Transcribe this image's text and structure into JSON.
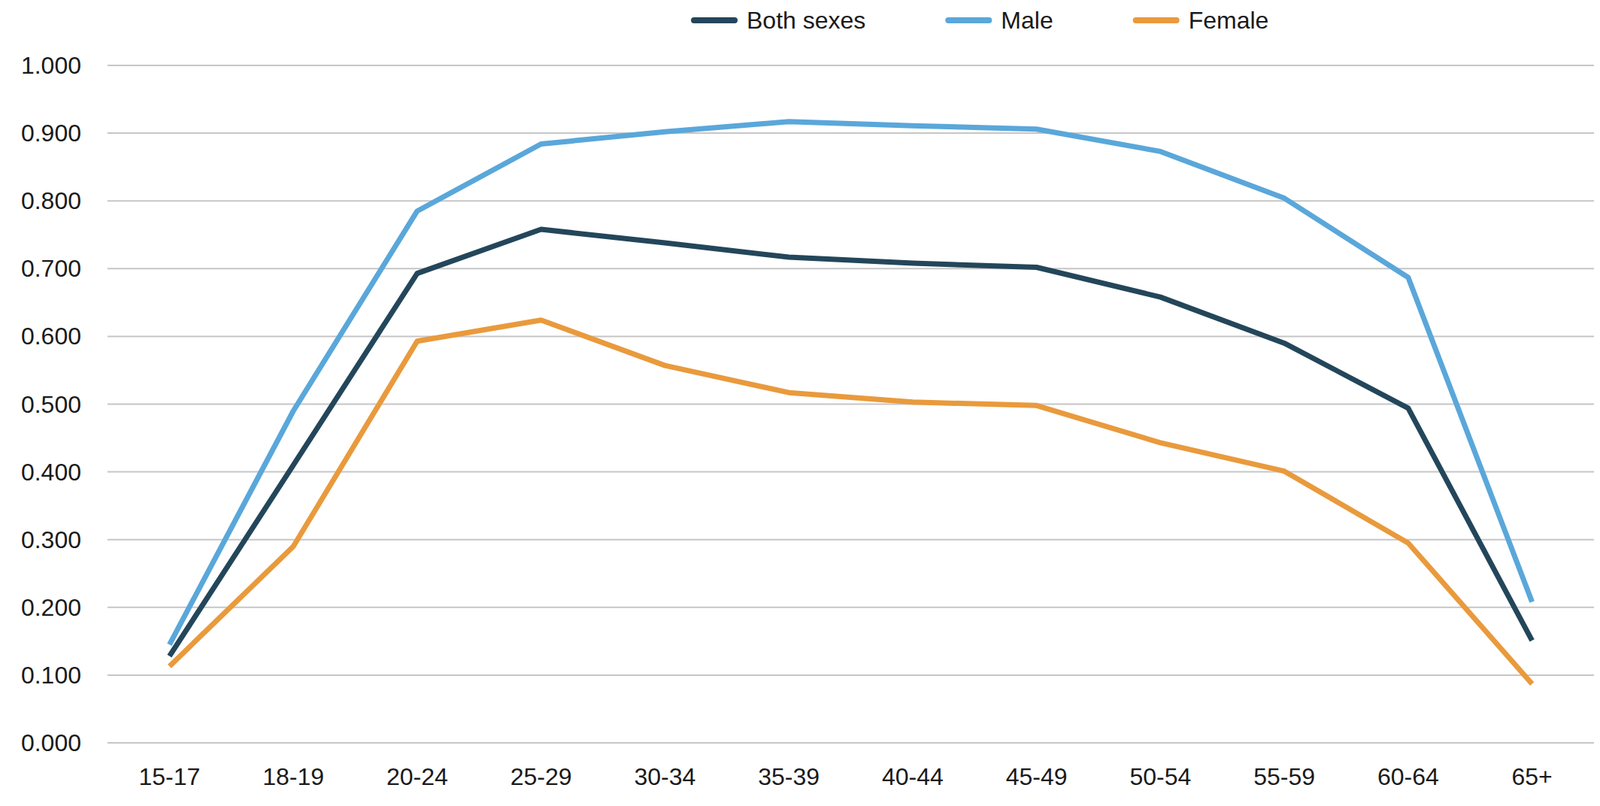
{
  "chart_data": {
    "type": "line",
    "categories": [
      "15-17",
      "18-19",
      "20-24",
      "25-29",
      "30-34",
      "35-39",
      "40-44",
      "45-49",
      "50-54",
      "55-59",
      "60-64",
      "65+"
    ],
    "series": [
      {
        "name": "Both sexes",
        "color": "#23465a",
        "values": [
          0.128,
          0.41,
          0.693,
          0.758,
          0.738,
          0.717,
          0.708,
          0.702,
          0.658,
          0.59,
          0.494,
          0.151
        ]
      },
      {
        "name": "Male",
        "color": "#5aa7da",
        "values": [
          0.145,
          0.49,
          0.785,
          0.884,
          0.902,
          0.917,
          0.911,
          0.906,
          0.873,
          0.804,
          0.687,
          0.208
        ]
      },
      {
        "name": "Female",
        "color": "#e99a3c",
        "values": [
          0.113,
          0.29,
          0.593,
          0.624,
          0.557,
          0.517,
          0.503,
          0.498,
          0.443,
          0.401,
          0.295,
          0.087
        ]
      }
    ],
    "ylim": [
      0,
      1
    ],
    "yticks": [
      {
        "value": 0,
        "label": "0.000"
      },
      {
        "value": 0.1,
        "label": "0.100"
      },
      {
        "value": 0.2,
        "label": "0.200"
      },
      {
        "value": 0.3,
        "label": "0.300"
      },
      {
        "value": 0.4,
        "label": "0.400"
      },
      {
        "value": 0.5,
        "label": "0.500"
      },
      {
        "value": 0.6,
        "label": "0.600"
      },
      {
        "value": 0.7,
        "label": "0.700"
      },
      {
        "value": 0.8,
        "label": "0.800"
      },
      {
        "value": 0.9,
        "label": "0.900"
      },
      {
        "value": 1,
        "label": "1.000"
      }
    ],
    "grid": true,
    "legend": "top"
  }
}
